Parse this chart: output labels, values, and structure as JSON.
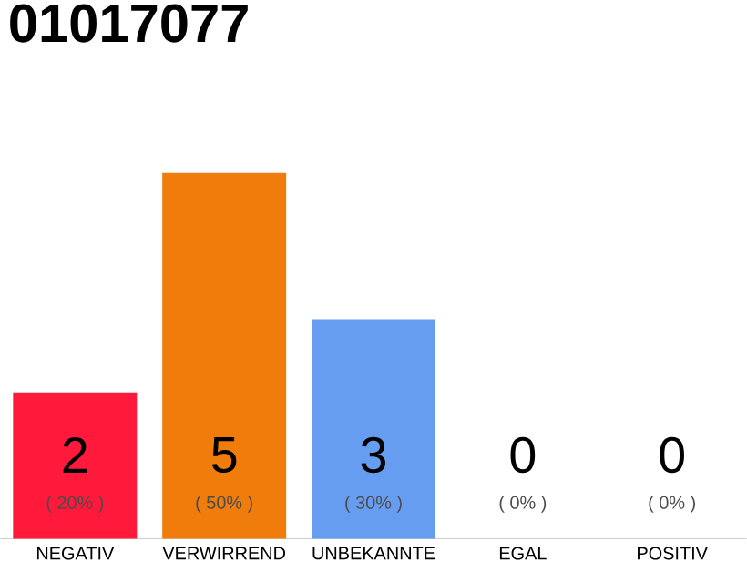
{
  "chart_data": {
    "type": "bar",
    "title": "01017077",
    "categories": [
      "NEGATIV",
      "VERWIRREND",
      "UNBEKANNTE",
      "EGAL",
      "POSITIV"
    ],
    "values": [
      2,
      5,
      3,
      0,
      0
    ],
    "colors": [
      "#ff1a3c",
      "#f07c0c",
      "#679df0",
      "#8fc46a",
      "#2ea64b"
    ],
    "tick_labels": "x",
    "data_labels": true,
    "annotations": [
      {
        "text": "( 20% )",
        "x": "NEGATIV",
        "y": 0
      },
      {
        "text": "( 50% )",
        "x": "VERWIRREND",
        "y": 0
      },
      {
        "text": "( 30% )",
        "x": "UNBEKANNTE",
        "y": 0
      },
      {
        "text": "( 0% )",
        "x": "EGAL",
        "y": 0
      },
      {
        "text": "( 0% )",
        "x": "POSITIV",
        "y": 0
      }
    ]
  }
}
